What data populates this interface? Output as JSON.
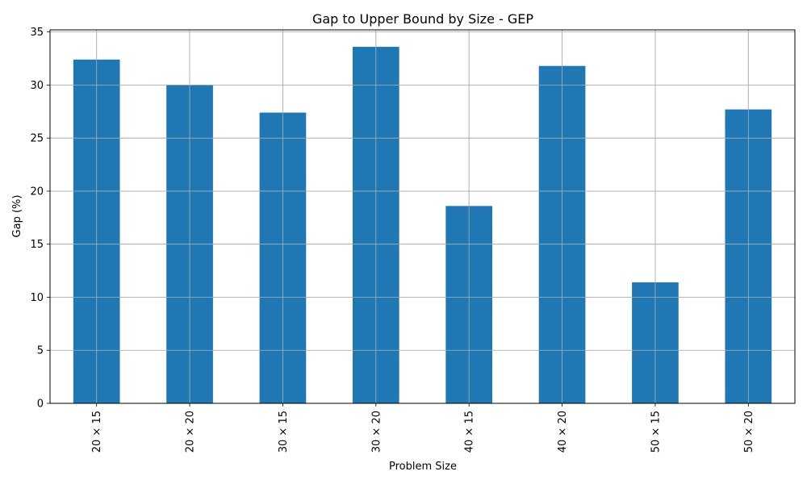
{
  "chart_data": {
    "type": "bar",
    "title": "Gap to Upper Bound by Size - GEP",
    "xlabel": "Problem Size",
    "ylabel": "Gap (%)",
    "categories": [
      "20 × 15",
      "20 × 20",
      "30 × 15",
      "30 × 20",
      "40 × 15",
      "40 × 20",
      "50 × 15",
      "50 × 20"
    ],
    "values": [
      32.4,
      30.0,
      27.4,
      33.6,
      18.6,
      31.8,
      11.4,
      27.7
    ],
    "ylim": [
      0,
      35.2
    ],
    "yticks": [
      0,
      5,
      10,
      15,
      20,
      25,
      30,
      35
    ],
    "grid": true,
    "legend": "none",
    "colors": {
      "bar": "#1f77b4",
      "grid": "#b0b0b0",
      "axis": "#000000"
    }
  }
}
